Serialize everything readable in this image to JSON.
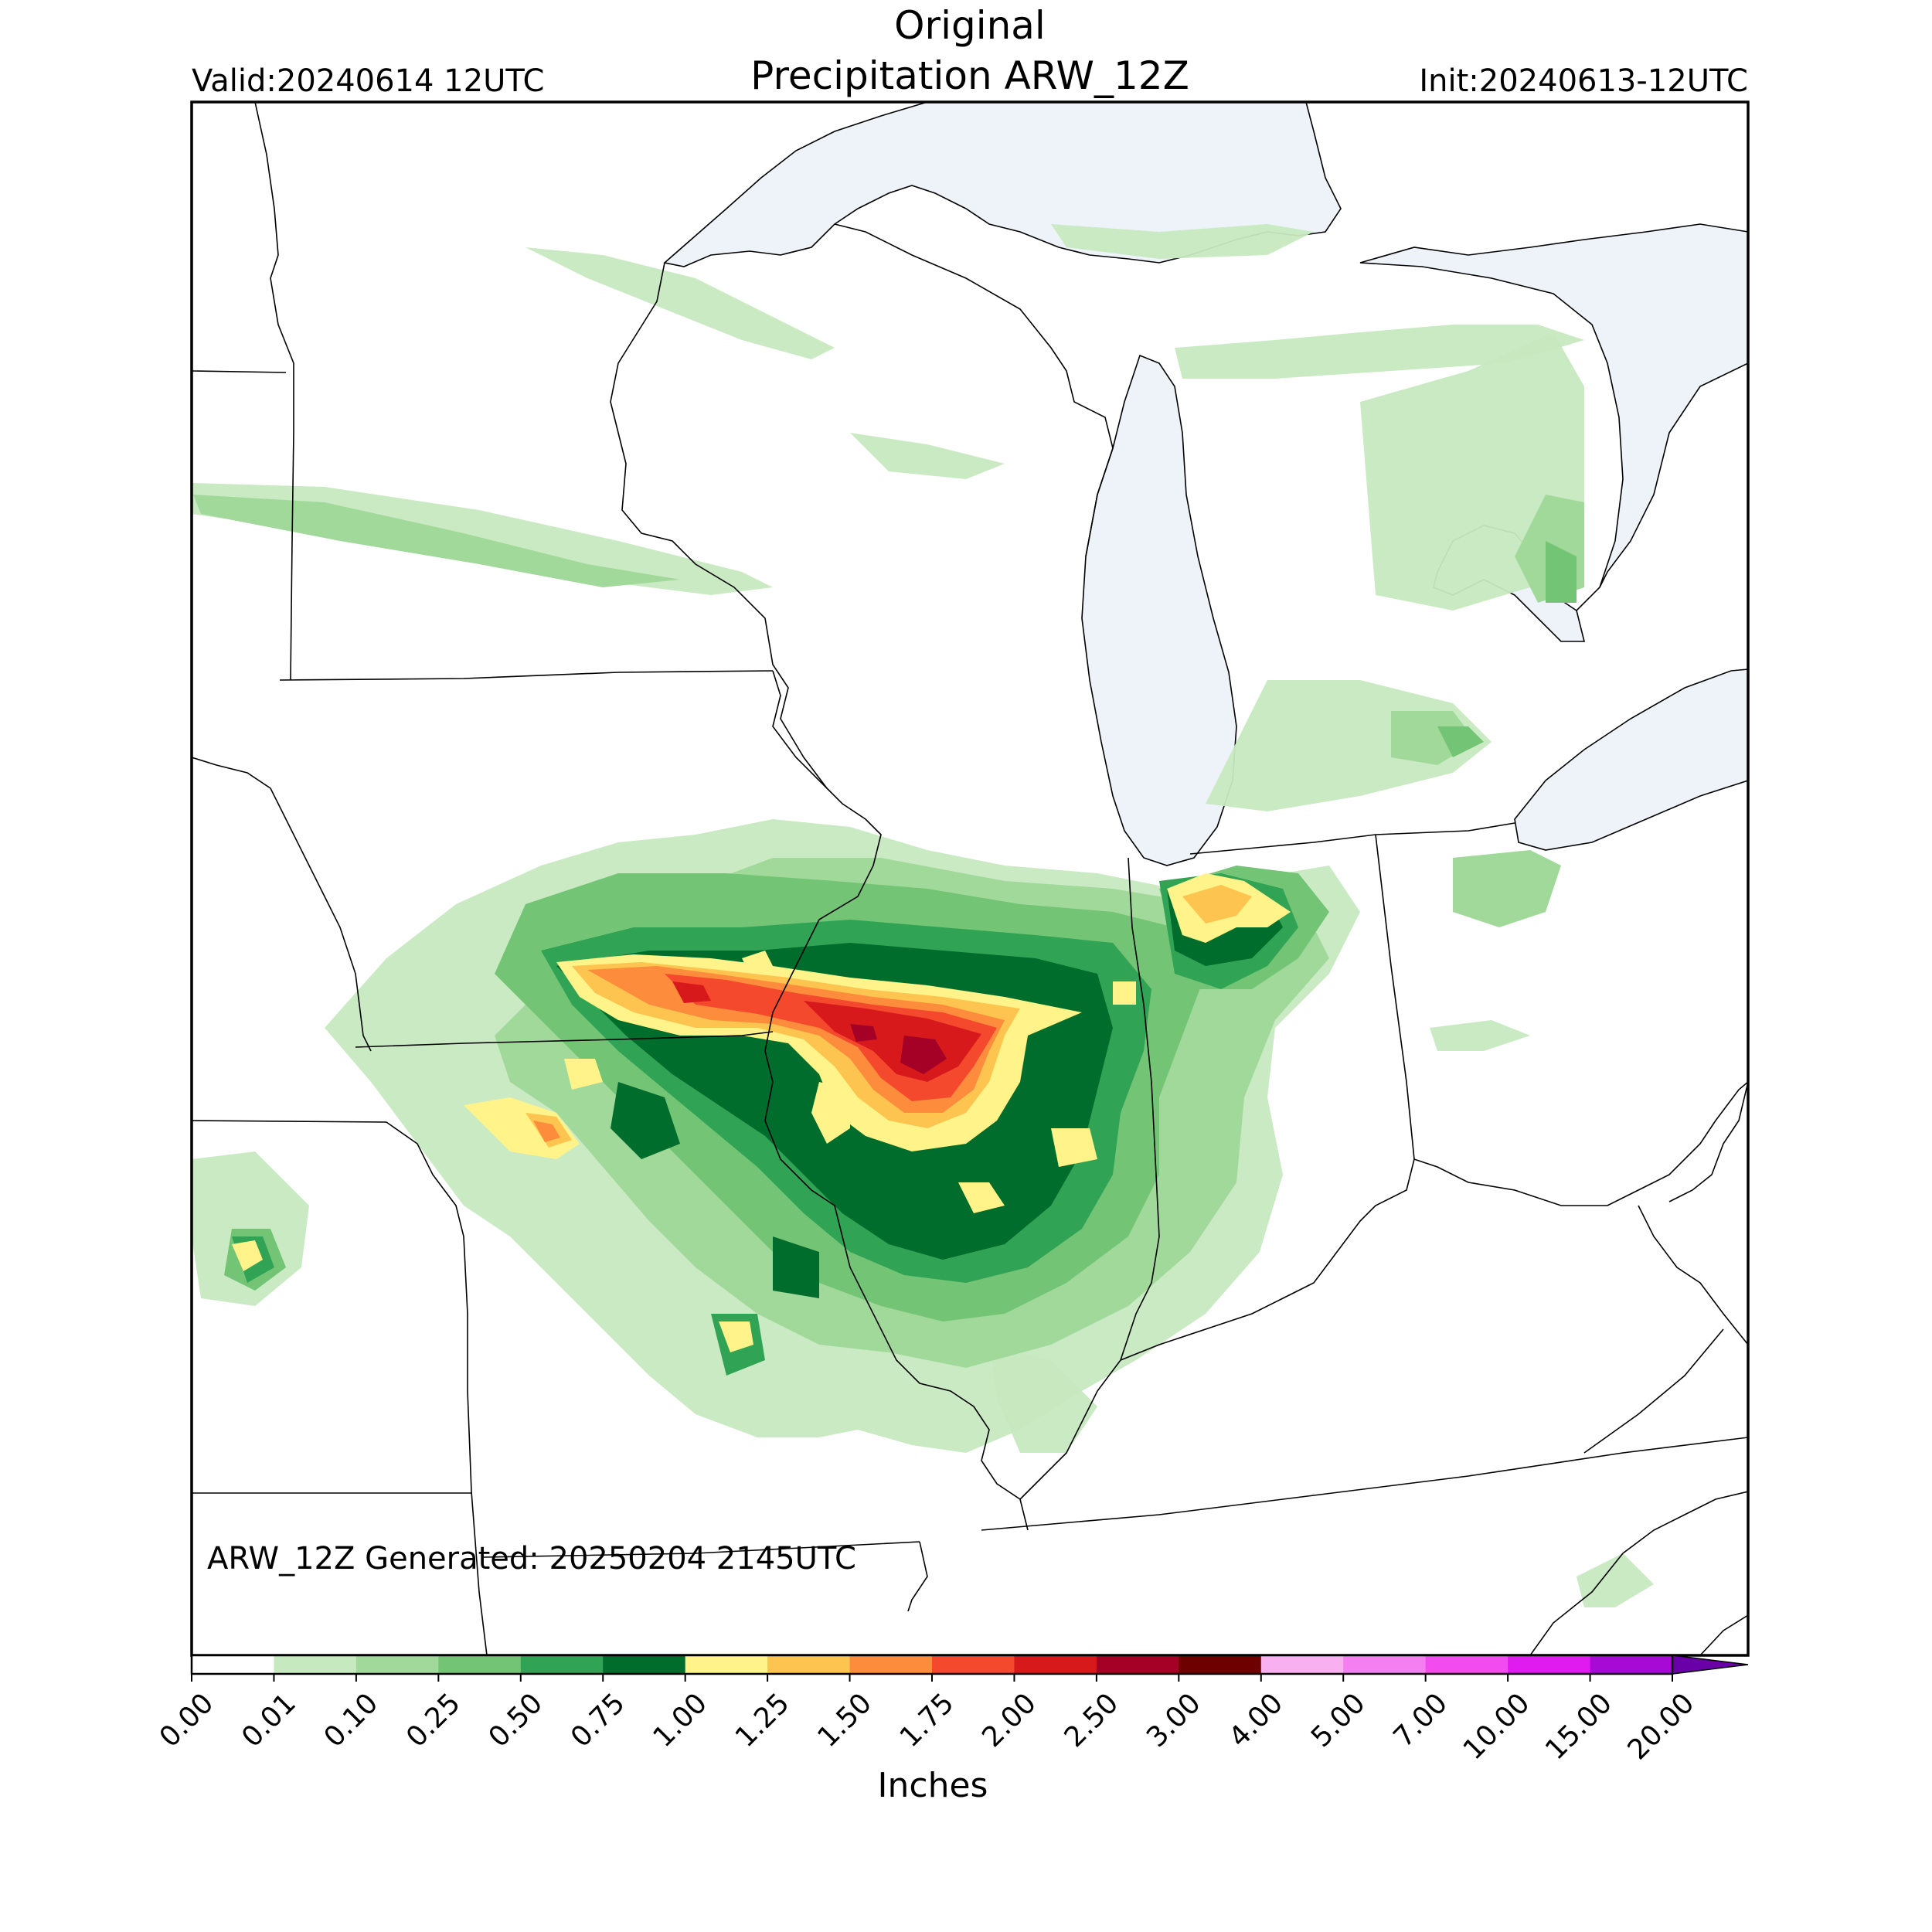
{
  "header": {
    "title_line1": "Original",
    "title_line2": "Precipitation ARW_12Z",
    "valid": "Valid:20240614 12UTC",
    "init": "Init:20240613-12UTC"
  },
  "map": {
    "footer_note": "ARW_12Z Generated: 20250204 2145UTC",
    "water_color": "#eef3fa",
    "land_color": "#ffffff",
    "border_color": "#000000"
  },
  "colorbar": {
    "label": "Inches",
    "ticks": [
      "0.00",
      "0.01",
      "0.10",
      "0.25",
      "0.50",
      "0.75",
      "1.00",
      "1.25",
      "1.50",
      "1.75",
      "2.00",
      "2.50",
      "3.00",
      "4.00",
      "5.00",
      "7.00",
      "10.00",
      "15.00",
      "20.00"
    ],
    "colors": [
      "#ffffff",
      "#c7e9c0",
      "#a1d99b",
      "#74c476",
      "#31a354",
      "#006d2c",
      "#fff38a",
      "#fdc44f",
      "#fd8d3c",
      "#f4492d",
      "#d7191c",
      "#a50026",
      "#6e0000",
      "#f9b0f0",
      "#f57ef0",
      "#f24cf0",
      "#e01bf0",
      "#a80ad6"
    ],
    "extend_color": "#6a00a8"
  }
}
